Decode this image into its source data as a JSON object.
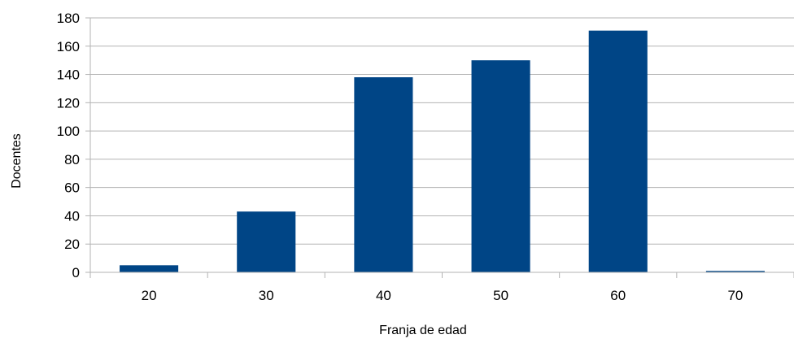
{
  "chart_data": {
    "type": "bar",
    "categories": [
      "20",
      "30",
      "40",
      "50",
      "60",
      "70"
    ],
    "series": [
      {
        "values": [
          5,
          43,
          138,
          150,
          171,
          1
        ]
      }
    ],
    "title": "",
    "xlabel": "Franja de edad",
    "ylabel": "Docentes",
    "ylim": [
      0,
      180
    ],
    "yticks": [
      "0",
      "20",
      "40",
      "60",
      "80",
      "100",
      "120",
      "140",
      "160",
      "180"
    ],
    "grid": true,
    "legend": "none",
    "colors": {
      "bar": "#004586",
      "grid": "#b3b3b3",
      "axis": "#b3b3b3"
    }
  }
}
